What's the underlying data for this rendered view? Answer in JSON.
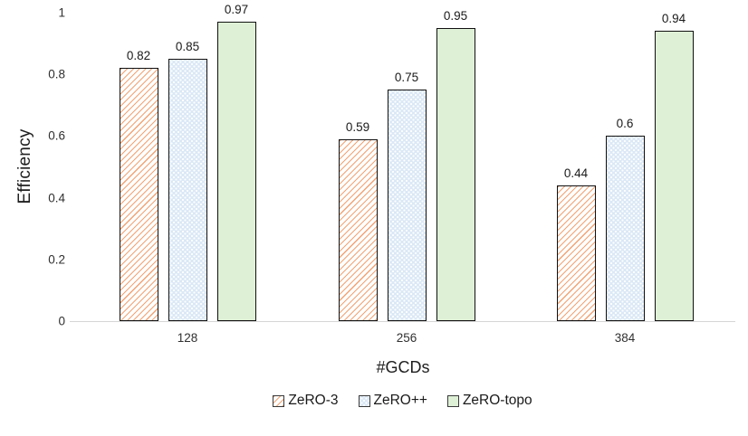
{
  "chart_data": {
    "type": "bar",
    "title": "",
    "xlabel": "#GCDs",
    "ylabel": "Efficiency",
    "categories": [
      "128",
      "256",
      "384"
    ],
    "series": [
      {
        "name": "ZeRO-3",
        "values": [
          0.82,
          0.59,
          0.44
        ],
        "value_labels": [
          "0.82",
          "0.59",
          "0.44"
        ],
        "fill": "hatch-diagonal",
        "color": "#f2a374",
        "base_color": "#ffffff"
      },
      {
        "name": "ZeRO++",
        "values": [
          0.85,
          0.75,
          0.6
        ],
        "value_labels": [
          "0.85",
          "0.75",
          "0.6"
        ],
        "fill": "dots",
        "color": "#dbe8f6",
        "base_color": "#ffffff"
      },
      {
        "name": "ZeRO-topo",
        "values": [
          0.97,
          0.95,
          0.94
        ],
        "value_labels": [
          "0.97",
          "0.95",
          "0.94"
        ],
        "fill": "solid",
        "color": "#def0d6",
        "base_color": "#def0d6"
      }
    ],
    "ylim": [
      0,
      1
    ],
    "yticks": [
      0,
      0.2,
      0.4,
      0.6,
      0.8,
      1
    ],
    "ytick_labels": [
      "0",
      "0.2",
      "0.4",
      "0.6",
      "0.8",
      "1"
    ],
    "grid": false,
    "legend_position": "bottom",
    "bar_border_color": "#101010",
    "axis_line_color": "#d6d6d6"
  }
}
